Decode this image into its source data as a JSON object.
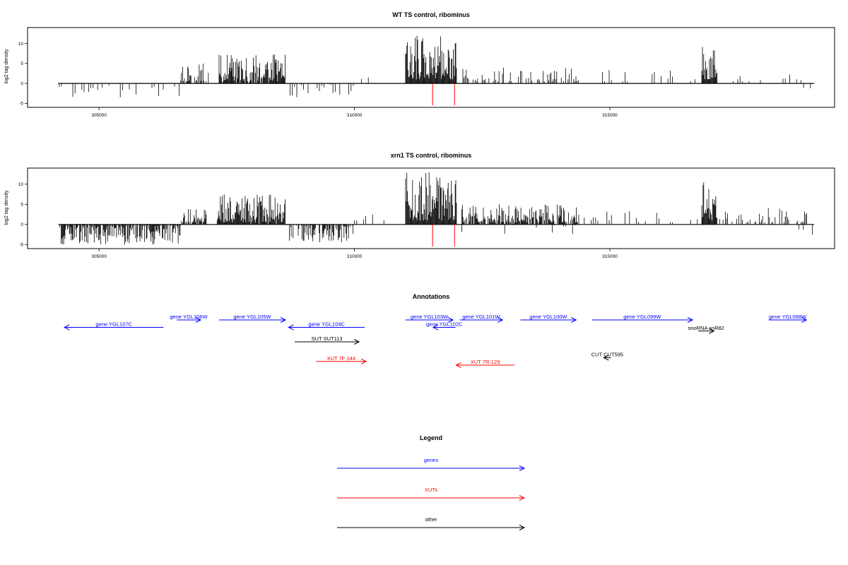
{
  "chart_data": [
    {
      "type": "bar",
      "title": "WT TS control, ribominus",
      "ylabel": "log2 tag density",
      "xlim": [
        303600,
        319400
      ],
      "ylim": [
        -6,
        14
      ],
      "x_ticks": [
        {
          "v": 305000,
          "label": "305000"
        },
        {
          "v": 310000,
          "label": "310000"
        },
        {
          "v": 315000,
          "label": "315000"
        }
      ],
      "y_ticks": [
        {
          "v": -5,
          "label": "-5"
        },
        {
          "v": 0,
          "label": "0"
        },
        {
          "v": 5,
          "label": "5"
        },
        {
          "v": 10,
          "label": "10"
        }
      ],
      "baseline": [
        304200,
        319000
      ],
      "red_markers": [
        {
          "x": 311530,
          "y": -5.5
        },
        {
          "x": 311960,
          "y": -5.5
        }
      ],
      "regions": [
        {
          "start": 304220,
          "end": 306600,
          "kind": "sparse",
          "min": -3.5,
          "max": 0,
          "density": 0.5,
          "seed": 11
        },
        {
          "start": 306600,
          "end": 307050,
          "kind": "dense",
          "min": 0.5,
          "max": 5,
          "density": 0.7,
          "seed": 12
        },
        {
          "start": 307050,
          "end": 307300,
          "kind": "sparse",
          "min": 0.5,
          "max": 3,
          "density": 0.3,
          "seed": 13
        },
        {
          "start": 307350,
          "end": 308650,
          "kind": "dense",
          "min": 0.5,
          "max": 7.5,
          "density": 0.9,
          "seed": 14
        },
        {
          "start": 308650,
          "end": 310000,
          "kind": "sparse",
          "min": -3.5,
          "max": 0,
          "density": 0.4,
          "seed": 15
        },
        {
          "start": 310050,
          "end": 310450,
          "kind": "sparse",
          "min": 1,
          "max": 2.5,
          "density": 0.15,
          "seed": 16
        },
        {
          "start": 311000,
          "end": 312000,
          "kind": "dense",
          "min": 1,
          "max": 12.5,
          "density": 1.0,
          "seed": 17
        },
        {
          "start": 312100,
          "end": 314400,
          "kind": "medium",
          "min": 0.5,
          "max": 4,
          "density": 0.6,
          "seed": 18
        },
        {
          "start": 314500,
          "end": 316750,
          "kind": "sparse",
          "min": 0.5,
          "max": 4.5,
          "density": 0.3,
          "seed": 19
        },
        {
          "start": 316800,
          "end": 317100,
          "kind": "dense",
          "min": 1,
          "max": 10,
          "density": 1.0,
          "seed": 20
        },
        {
          "start": 317150,
          "end": 318900,
          "kind": "sparse",
          "min": 0.5,
          "max": 3,
          "density": 0.2,
          "seed": 21
        },
        {
          "start": 318750,
          "end": 319000,
          "kind": "sparse",
          "min": -1.5,
          "max": 0,
          "density": 0.3,
          "seed": 22
        }
      ]
    },
    {
      "type": "bar",
      "title": "xrn1 TS control, ribominus",
      "ylabel": "log2 tag density",
      "xlim": [
        303600,
        319400
      ],
      "ylim": [
        -6,
        14
      ],
      "x_ticks": [
        {
          "v": 305000,
          "label": "305000"
        },
        {
          "v": 310000,
          "label": "310000"
        },
        {
          "v": 315000,
          "label": "315000"
        }
      ],
      "y_ticks": [
        {
          "v": -5,
          "label": "-5"
        },
        {
          "v": 0,
          "label": "0"
        },
        {
          "v": 5,
          "label": "5"
        },
        {
          "v": 10,
          "label": "10"
        }
      ],
      "baseline": [
        304200,
        319000
      ],
      "red_markers": [
        {
          "x": 311530,
          "y": -5.5
        },
        {
          "x": 311960,
          "y": -5.5
        }
      ],
      "regions": [
        {
          "start": 304220,
          "end": 306600,
          "kind": "dense",
          "min": -5,
          "max": 0,
          "density": 0.9,
          "seed": 31
        },
        {
          "start": 306600,
          "end": 307100,
          "kind": "dense",
          "min": 0.5,
          "max": 4,
          "density": 0.8,
          "seed": 32
        },
        {
          "start": 307300,
          "end": 308650,
          "kind": "dense",
          "min": 0.5,
          "max": 7.5,
          "density": 0.95,
          "seed": 33
        },
        {
          "start": 308650,
          "end": 310000,
          "kind": "dense",
          "min": -4.5,
          "max": 0,
          "density": 0.7,
          "seed": 34
        },
        {
          "start": 310000,
          "end": 310900,
          "kind": "sparse",
          "min": 1,
          "max": 2.5,
          "density": 0.2,
          "seed": 35
        },
        {
          "start": 311000,
          "end": 312000,
          "kind": "dense",
          "min": 1,
          "max": 13,
          "density": 1.0,
          "seed": 36
        },
        {
          "start": 312100,
          "end": 314400,
          "kind": "dense",
          "min": 0.5,
          "max": 5,
          "density": 0.8,
          "seed": 37
        },
        {
          "start": 312100,
          "end": 314400,
          "kind": "sparse",
          "min": -2.5,
          "max": 0,
          "density": 0.3,
          "seed": 38
        },
        {
          "start": 314500,
          "end": 316750,
          "kind": "sparse",
          "min": 0.5,
          "max": 3.5,
          "density": 0.35,
          "seed": 39
        },
        {
          "start": 316800,
          "end": 317100,
          "kind": "dense",
          "min": 1,
          "max": 11,
          "density": 1.0,
          "seed": 40
        },
        {
          "start": 317150,
          "end": 319000,
          "kind": "medium",
          "min": 0.5,
          "max": 4.5,
          "density": 0.5,
          "seed": 41
        },
        {
          "start": 318700,
          "end": 319000,
          "kind": "sparse",
          "min": -3.5,
          "max": 0,
          "density": 0.5,
          "seed": 42
        }
      ]
    },
    {
      "type": "table",
      "title": "Annotations",
      "xlim": [
        303600,
        319400
      ],
      "features": [
        {
          "label": "gene YGL107C",
          "start": 306260,
          "end": 304320,
          "row": 2,
          "color": "#0000ff"
        },
        {
          "label": "gene YGL106W",
          "start": 306520,
          "end": 306990,
          "row": 1,
          "color": "#0000ff"
        },
        {
          "label": "gene YGL105W",
          "start": 307350,
          "end": 308650,
          "row": 1,
          "color": "#0000ff"
        },
        {
          "label": "gene YGL104C",
          "start": 310200,
          "end": 308710,
          "row": 2,
          "color": "#0000ff"
        },
        {
          "label": "SUT SUT113",
          "start": 308830,
          "end": 310090,
          "row": 3,
          "color": "#000000"
        },
        {
          "label": "gene YGL103W",
          "start": 311000,
          "end": 311930,
          "row": 1,
          "color": "#0000ff"
        },
        {
          "label": "gene YGL102C",
          "start": 311980,
          "end": 311540,
          "row": 2,
          "color": "#0000ff"
        },
        {
          "label": "gene YGL101W",
          "start": 312060,
          "end": 312900,
          "row": 1,
          "color": "#0000ff"
        },
        {
          "label": "gene YGL100W",
          "start": 313250,
          "end": 314340,
          "row": 1,
          "color": "#0000ff"
        },
        {
          "label": "gene YGL099W",
          "start": 314650,
          "end": 316620,
          "row": 1,
          "color": "#0000ff"
        },
        {
          "label": "snoRNA snR82",
          "start": 316730,
          "end": 317040,
          "row": 2.5,
          "color": "#000000"
        },
        {
          "label": "gene YGL098W",
          "start": 318110,
          "end": 318850,
          "row": 1,
          "color": "#0000ff"
        },
        {
          "label": "XUT 7F-144",
          "start": 309250,
          "end": 310230,
          "row": 4.5,
          "color": "#ff0000"
        },
        {
          "label": "CUT CUT595",
          "start": 315020,
          "end": 314880,
          "row": 4,
          "color": "#000000"
        },
        {
          "label": "XUT 7R-129",
          "start": 313130,
          "end": 311990,
          "row": 5,
          "color": "#ff0000"
        }
      ]
    },
    {
      "type": "table",
      "title": "Legend",
      "entries": [
        {
          "label": "genes",
          "color": "#0000ff"
        },
        {
          "label": "XUTs",
          "color": "#ff0000"
        },
        {
          "label": "other",
          "color": "#000000"
        }
      ]
    }
  ]
}
